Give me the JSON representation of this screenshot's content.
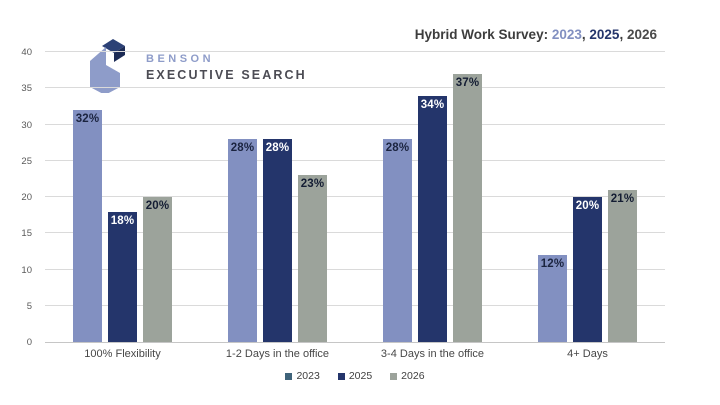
{
  "logo": {
    "name": "BENSON",
    "subtitle": "EXECUTIVE SEARCH",
    "mark_colors": {
      "light": "#8e9cc9",
      "navy_top": "#2c4176",
      "navy_side": "#1c2b55"
    }
  },
  "title": {
    "segments": [
      {
        "text": "Hybrid Work Survey: ",
        "color": "#3d3d3d",
        "bold": false
      },
      {
        "text": "2023",
        "color": "#8290c1",
        "bold": false
      },
      {
        "text": ", ",
        "color": "#3d3d3d",
        "bold": false
      },
      {
        "text": "2025",
        "color": "#24356b",
        "bold": true
      },
      {
        "text": ", ",
        "color": "#3d3d3d",
        "bold": false
      },
      {
        "text": "2026",
        "color": "#4a4a4a",
        "bold": false
      }
    ]
  },
  "chart_data": {
    "type": "bar",
    "title": "Hybrid Work Survey: 2023, 2025, 2026",
    "categories": [
      "100% Flexibility",
      "1-2 Days in the office",
      "3-4 Days in the office",
      "4+ Days"
    ],
    "series": [
      {
        "name": "2023",
        "values": [
          32,
          28,
          28,
          12
        ],
        "color": "#8290c1",
        "label_color": "#1b2440",
        "legend_color": "#3f637a"
      },
      {
        "name": "2025",
        "values": [
          18,
          28,
          34,
          20
        ],
        "color": "#24356b",
        "label_color": "#ffffff",
        "legend_color": "#24356b"
      },
      {
        "name": "2026",
        "values": [
          20,
          23,
          37,
          21
        ],
        "color": "#9ca39b",
        "label_color": "#141d33",
        "legend_color": "#9ca39b"
      }
    ],
    "value_suffix": "%",
    "xlabel": "",
    "ylabel": "",
    "ylim": [
      0,
      40
    ],
    "yticks": [
      0,
      5,
      10,
      15,
      20,
      25,
      30,
      35,
      40
    ],
    "grid": true,
    "gridline_color": "#dadada",
    "legend_position": "bottom"
  }
}
